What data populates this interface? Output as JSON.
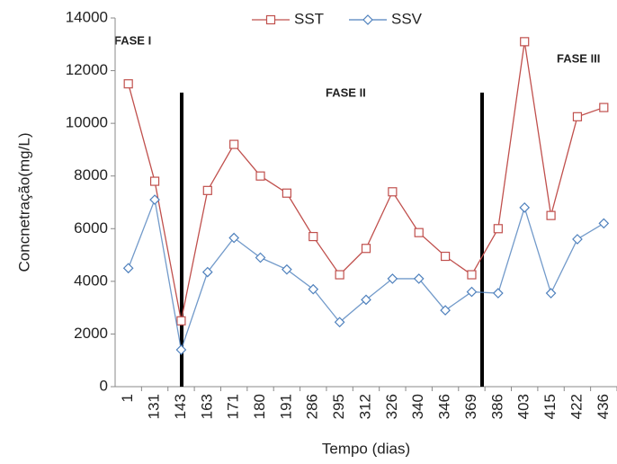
{
  "chart_data": {
    "type": "line",
    "y_label": "Concnetração(mg/L)",
    "x_label": "Tempo (dias)",
    "annotations": [
      "FASE I",
      "FASE II",
      "FASE III"
    ],
    "categories": [
      "1",
      "131",
      "143",
      "163",
      "171",
      "180",
      "191",
      "286",
      "295",
      "312",
      "326",
      "340",
      "346",
      "369",
      "386",
      "403",
      "415",
      "422",
      "436"
    ],
    "series": [
      {
        "name": "SST",
        "color": "#c0504d",
        "values": [
          11500,
          7800,
          2500,
          7450,
          9200,
          8000,
          7350,
          5700,
          4250,
          5250,
          7400,
          5850,
          4950,
          4250,
          6000,
          13100,
          6500,
          10250,
          10600
        ]
      },
      {
        "name": "SSV",
        "color": "#4f81bd",
        "values": [
          4500,
          7100,
          1400,
          4350,
          5650,
          4900,
          4450,
          3700,
          2450,
          3300,
          4100,
          4100,
          2900,
          3600,
          3550,
          6800,
          3550,
          5600,
          6200
        ]
      }
    ],
    "ylim": [
      0,
      14000
    ],
    "yticks": [
      0,
      2000,
      4000,
      6000,
      8000,
      10000,
      12000,
      14000
    ]
  }
}
